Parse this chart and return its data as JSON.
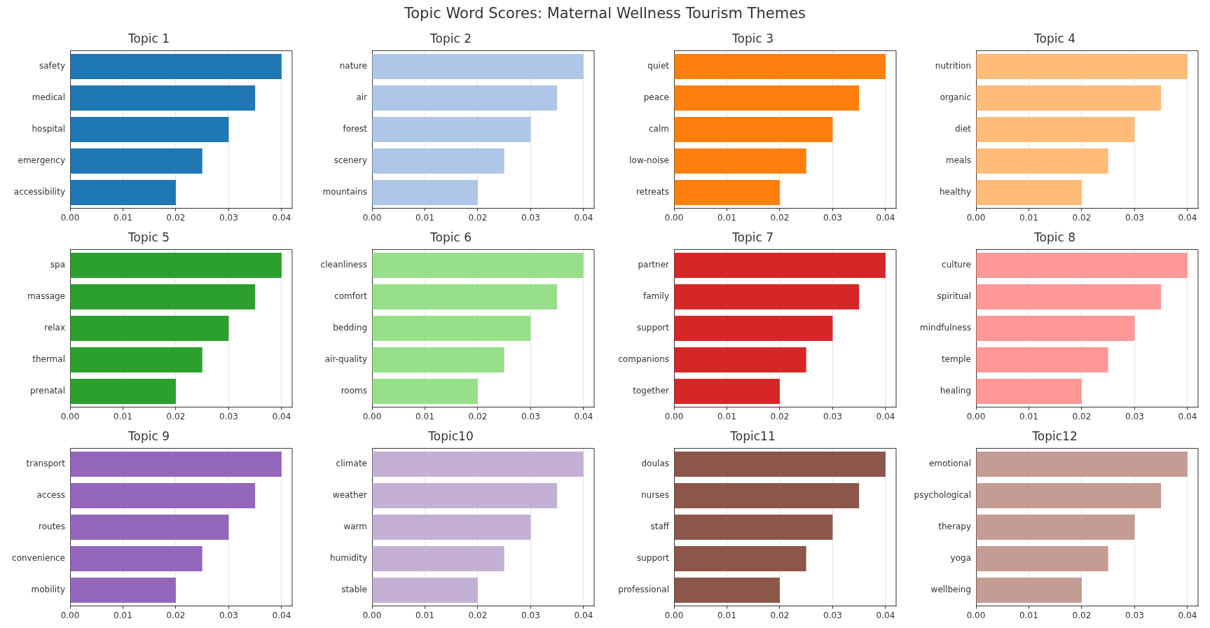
{
  "chart_data": [
    {
      "type": "bar",
      "orientation": "horizontal",
      "title": "Topic 1",
      "annotations": [
        "Topic Word Scores: Maternal Wellness Tourism Themes"
      ],
      "categories": [
        "safety",
        "medical",
        "hospital",
        "emergency",
        "accessibility"
      ],
      "values": [
        0.04,
        0.035,
        0.03,
        0.025,
        0.02
      ],
      "color": "#1f77b4",
      "xlim": [
        0,
        0.042
      ],
      "xticks": [
        {
          "value": 0,
          "label": "0.00"
        },
        {
          "value": 0.01,
          "label": "0.01"
        },
        {
          "value": 0.02,
          "label": "0.02"
        },
        {
          "value": 0.03,
          "label": "0.03"
        },
        {
          "value": 0.04,
          "label": "0.04"
        }
      ],
      "grid": "x",
      "legend": false
    },
    {
      "type": "bar",
      "orientation": "horizontal",
      "title": "Topic 2",
      "categories": [
        "nature",
        "air",
        "forest",
        "scenery",
        "mountains"
      ],
      "values": [
        0.04,
        0.035,
        0.03,
        0.025,
        0.02
      ],
      "color": "#aec7e8",
      "xlim": [
        0,
        0.042
      ],
      "xticks": [
        {
          "value": 0,
          "label": "0.00"
        },
        {
          "value": 0.01,
          "label": "0.01"
        },
        {
          "value": 0.02,
          "label": "0.02"
        },
        {
          "value": 0.03,
          "label": "0.03"
        },
        {
          "value": 0.04,
          "label": "0.04"
        }
      ],
      "grid": "x",
      "legend": false
    },
    {
      "type": "bar",
      "orientation": "horizontal",
      "title": "Topic 3",
      "categories": [
        "quiet",
        "peace",
        "calm",
        "low-noise",
        "retreats"
      ],
      "values": [
        0.04,
        0.035,
        0.03,
        0.025,
        0.02
      ],
      "color": "#ff7f0e",
      "xlim": [
        0,
        0.042
      ],
      "xticks": [
        {
          "value": 0,
          "label": "0.00"
        },
        {
          "value": 0.01,
          "label": "0.01"
        },
        {
          "value": 0.02,
          "label": "0.02"
        },
        {
          "value": 0.03,
          "label": "0.03"
        },
        {
          "value": 0.04,
          "label": "0.04"
        }
      ],
      "grid": "x",
      "legend": false
    },
    {
      "type": "bar",
      "orientation": "horizontal",
      "title": "Topic 4",
      "categories": [
        "nutrition",
        "organic",
        "diet",
        "meals",
        "healthy"
      ],
      "values": [
        0.04,
        0.035,
        0.03,
        0.025,
        0.02
      ],
      "color": "#ffbb78",
      "xlim": [
        0,
        0.042
      ],
      "xticks": [
        {
          "value": 0,
          "label": "0.00"
        },
        {
          "value": 0.01,
          "label": "0.01"
        },
        {
          "value": 0.02,
          "label": "0.02"
        },
        {
          "value": 0.03,
          "label": "0.03"
        },
        {
          "value": 0.04,
          "label": "0.04"
        }
      ],
      "grid": "x",
      "legend": false
    },
    {
      "type": "bar",
      "orientation": "horizontal",
      "title": "Topic 5",
      "categories": [
        "spa",
        "massage",
        "relax",
        "thermal",
        "prenatal"
      ],
      "values": [
        0.04,
        0.035,
        0.03,
        0.025,
        0.02
      ],
      "color": "#2ca02c",
      "xlim": [
        0,
        0.042
      ],
      "xticks": [
        {
          "value": 0,
          "label": "0.00"
        },
        {
          "value": 0.01,
          "label": "0.01"
        },
        {
          "value": 0.02,
          "label": "0.02"
        },
        {
          "value": 0.03,
          "label": "0.03"
        },
        {
          "value": 0.04,
          "label": "0.04"
        }
      ],
      "grid": "x",
      "legend": false
    },
    {
      "type": "bar",
      "orientation": "horizontal",
      "title": "Topic 6",
      "categories": [
        "cleanliness",
        "comfort",
        "bedding",
        "air-quality",
        "rooms"
      ],
      "values": [
        0.04,
        0.035,
        0.03,
        0.025,
        0.02
      ],
      "color": "#98df8a",
      "xlim": [
        0,
        0.042
      ],
      "xticks": [
        {
          "value": 0,
          "label": "0.00"
        },
        {
          "value": 0.01,
          "label": "0.01"
        },
        {
          "value": 0.02,
          "label": "0.02"
        },
        {
          "value": 0.03,
          "label": "0.03"
        },
        {
          "value": 0.04,
          "label": "0.04"
        }
      ],
      "grid": "x",
      "legend": false
    },
    {
      "type": "bar",
      "orientation": "horizontal",
      "title": "Topic 7",
      "categories": [
        "partner",
        "family",
        "support",
        "companions",
        "together"
      ],
      "values": [
        0.04,
        0.035,
        0.03,
        0.025,
        0.02
      ],
      "color": "#d62728",
      "xlim": [
        0,
        0.042
      ],
      "xticks": [
        {
          "value": 0,
          "label": "0.00"
        },
        {
          "value": 0.01,
          "label": "0.01"
        },
        {
          "value": 0.02,
          "label": "0.02"
        },
        {
          "value": 0.03,
          "label": "0.03"
        },
        {
          "value": 0.04,
          "label": "0.04"
        }
      ],
      "grid": "x",
      "legend": false
    },
    {
      "type": "bar",
      "orientation": "horizontal",
      "title": "Topic 8",
      "categories": [
        "culture",
        "spiritual",
        "mindfulness",
        "temple",
        "healing"
      ],
      "values": [
        0.04,
        0.035,
        0.03,
        0.025,
        0.02
      ],
      "color": "#ff9896",
      "xlim": [
        0,
        0.042
      ],
      "xticks": [
        {
          "value": 0,
          "label": "0.00"
        },
        {
          "value": 0.01,
          "label": "0.01"
        },
        {
          "value": 0.02,
          "label": "0.02"
        },
        {
          "value": 0.03,
          "label": "0.03"
        },
        {
          "value": 0.04,
          "label": "0.04"
        }
      ],
      "grid": "x",
      "legend": false
    },
    {
      "type": "bar",
      "orientation": "horizontal",
      "title": "Topic 9",
      "categories": [
        "transport",
        "access",
        "routes",
        "convenience",
        "mobility"
      ],
      "values": [
        0.04,
        0.035,
        0.03,
        0.025,
        0.02
      ],
      "color": "#9467bd",
      "xlim": [
        0,
        0.042
      ],
      "xticks": [
        {
          "value": 0,
          "label": "0.00"
        },
        {
          "value": 0.01,
          "label": "0.01"
        },
        {
          "value": 0.02,
          "label": "0.02"
        },
        {
          "value": 0.03,
          "label": "0.03"
        },
        {
          "value": 0.04,
          "label": "0.04"
        }
      ],
      "grid": "x",
      "legend": false
    },
    {
      "type": "bar",
      "orientation": "horizontal",
      "title": "Topic10",
      "categories": [
        "climate",
        "weather",
        "warm",
        "humidity",
        "stable"
      ],
      "values": [
        0.04,
        0.035,
        0.03,
        0.025,
        0.02
      ],
      "color": "#c5b0d5",
      "xlim": [
        0,
        0.042
      ],
      "xticks": [
        {
          "value": 0,
          "label": "0.00"
        },
        {
          "value": 0.01,
          "label": "0.01"
        },
        {
          "value": 0.02,
          "label": "0.02"
        },
        {
          "value": 0.03,
          "label": "0.03"
        },
        {
          "value": 0.04,
          "label": "0.04"
        }
      ],
      "grid": "x",
      "legend": false
    },
    {
      "type": "bar",
      "orientation": "horizontal",
      "title": "Topic11",
      "categories": [
        "doulas",
        "nurses",
        "staff",
        "support",
        "professional"
      ],
      "values": [
        0.04,
        0.035,
        0.03,
        0.025,
        0.02
      ],
      "color": "#8c564b",
      "xlim": [
        0,
        0.042
      ],
      "xticks": [
        {
          "value": 0,
          "label": "0.00"
        },
        {
          "value": 0.01,
          "label": "0.01"
        },
        {
          "value": 0.02,
          "label": "0.02"
        },
        {
          "value": 0.03,
          "label": "0.03"
        },
        {
          "value": 0.04,
          "label": "0.04"
        }
      ],
      "grid": "x",
      "legend": false
    },
    {
      "type": "bar",
      "orientation": "horizontal",
      "title": "Topic12",
      "categories": [
        "emotional",
        "psychological",
        "therapy",
        "yoga",
        "wellbeing"
      ],
      "values": [
        0.04,
        0.035,
        0.03,
        0.025,
        0.02
      ],
      "color": "#c49c94",
      "xlim": [
        0,
        0.042
      ],
      "xticks": [
        {
          "value": 0,
          "label": "0.00"
        },
        {
          "value": 0.01,
          "label": "0.01"
        },
        {
          "value": 0.02,
          "label": "0.02"
        },
        {
          "value": 0.03,
          "label": "0.03"
        },
        {
          "value": 0.04,
          "label": "0.04"
        }
      ],
      "grid": "x",
      "legend": false
    }
  ]
}
